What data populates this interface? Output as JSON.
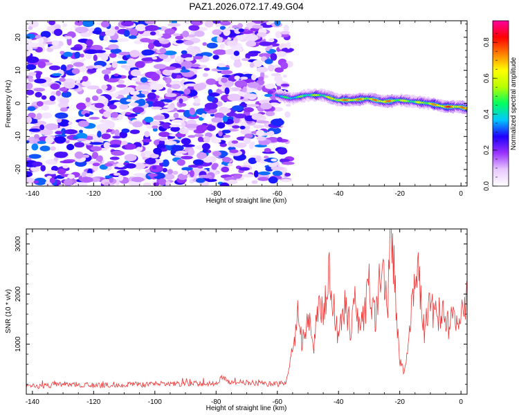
{
  "title": "PAZ1.2026.072.17.49.G04",
  "chart_data": [
    {
      "type": "heatmap",
      "title": "PAZ1.2026.072.17.49.G04",
      "xlabel": "Height of straight line (km)",
      "ylabel": "Frequency (Hz)",
      "xlim": [
        -142,
        2
      ],
      "ylim": [
        -25,
        25
      ],
      "xticks": [
        -140,
        -120,
        -100,
        -80,
        -60,
        -40,
        -20,
        0
      ],
      "yticks": [
        -20,
        -10,
        0,
        10,
        20
      ],
      "noise_region": {
        "x_range": [
          -142,
          -58
        ],
        "freq_range": [
          -25,
          25
        ],
        "amplitude_range": [
          0.0,
          0.3
        ]
      },
      "signal_ridge": {
        "x": [
          -60,
          -55,
          -50,
          -45,
          -40,
          -35,
          -30,
          -25,
          -20,
          -15,
          -10,
          -5,
          0,
          2
        ],
        "freq": [
          2.5,
          1.5,
          2.5,
          2.5,
          1.0,
          1.0,
          1.5,
          0.5,
          1.0,
          0.5,
          0.0,
          -1.0,
          -1.0,
          -1.5
        ],
        "peak_amplitude": [
          0.45,
          0.5,
          0.55,
          0.6,
          0.75,
          0.8,
          0.7,
          0.85,
          0.65,
          0.6,
          0.7,
          0.85,
          0.8,
          0.75
        ]
      },
      "colorbar": {
        "label": "Normalized spectral amplitude",
        "range": [
          0.0,
          0.92
        ],
        "ticks": [
          "0.0",
          "0.2",
          "0.4",
          "0.6",
          "0.8"
        ],
        "colors": [
          "#ffffff",
          "#e8c8ff",
          "#9a32ff",
          "#2000ff",
          "#00c8ff",
          "#00ff60",
          "#b8ff00",
          "#ffff00",
          "#ff8000",
          "#ff0000",
          "#ff00a0"
        ]
      }
    },
    {
      "type": "line",
      "xlabel": "Height of straight line (km)",
      "ylabel": "SNR (10 * v/v)",
      "xlim": [
        -142,
        2
      ],
      "ylim": [
        0,
        3300
      ],
      "xticks": [
        -140,
        -120,
        -100,
        -80,
        -60,
        -40,
        -20,
        0
      ],
      "yticks": [
        1000,
        2000,
        3000
      ],
      "color": "#ee3333",
      "series": [
        {
          "name": "SNR",
          "x": [
            -142,
            -130,
            -120,
            -100,
            -80,
            -78,
            -76,
            -60,
            -57,
            -55,
            -53,
            -52,
            -50,
            -48,
            -46,
            -45,
            -43,
            -40,
            -38,
            -36,
            -35,
            -33,
            -30,
            -28,
            -26,
            -25,
            -24,
            -23,
            -22,
            -21,
            -20,
            -19,
            -18,
            -16,
            -14,
            -12,
            -10,
            -8,
            -6,
            -4,
            -2,
            0,
            2
          ],
          "y": [
            150,
            200,
            180,
            200,
            220,
            350,
            250,
            200,
            250,
            850,
            1700,
            1000,
            1500,
            1000,
            2000,
            1500,
            2400,
            1100,
            1800,
            1300,
            2000,
            1200,
            2150,
            1500,
            2700,
            2100,
            1700,
            3200,
            2600,
            1500,
            700,
            500,
            600,
            1800,
            2400,
            1300,
            1800,
            1500,
            1700,
            1350,
            1600,
            1650,
            2000
          ]
        }
      ]
    }
  ]
}
